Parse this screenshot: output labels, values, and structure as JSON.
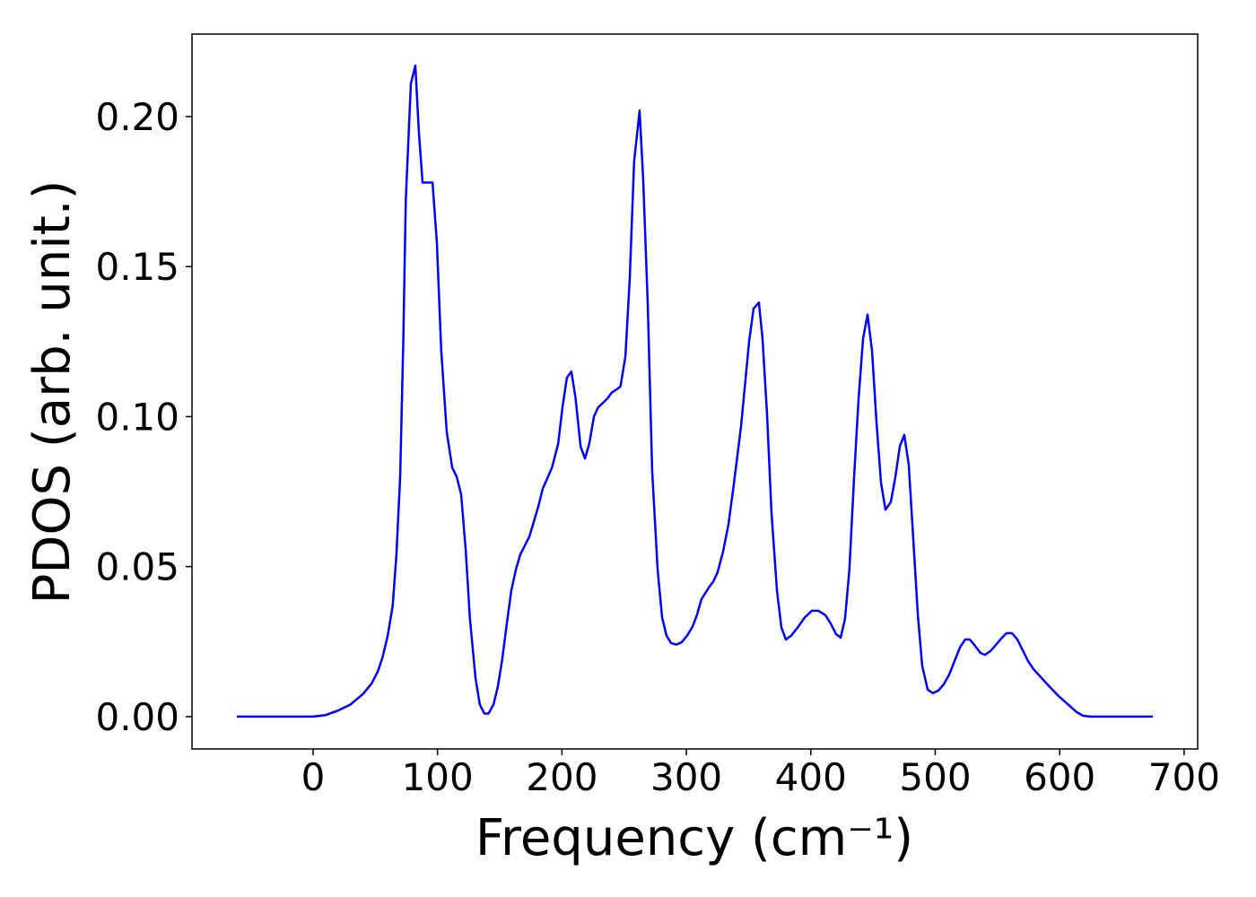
{
  "chart_data": {
    "type": "line",
    "xlabel": "Frequency (cm⁻¹)",
    "ylabel": "PDOS (arb. unit.)",
    "xlim": [
      -97.3,
      710.9
    ],
    "ylim": [
      -0.0108,
      0.2275
    ],
    "xticks": [
      0,
      100,
      200,
      300,
      400,
      500,
      600,
      700
    ],
    "yticks": [
      {
        "value": 0,
        "label": "0.00"
      },
      {
        "value": 0.05,
        "label": "0.05"
      },
      {
        "value": 0.1,
        "label": "0.10"
      },
      {
        "value": 0.15,
        "label": "0.15"
      },
      {
        "value": 0.2,
        "label": "0.20"
      }
    ],
    "grid": false,
    "series": [
      {
        "color": "#0000ff",
        "x": [
          -61.3,
          0,
          10,
          20,
          30,
          40,
          47,
          52,
          56,
          60,
          64,
          67,
          70,
          72.5,
          74.5,
          78.6,
          82.2,
          85,
          88,
          92,
          96,
          99.5,
          103,
          107.4,
          111.8,
          115.4,
          119,
          122.6,
          126,
          130.5,
          134,
          137.7,
          141,
          145,
          148.5,
          152,
          155.7,
          159.3,
          163,
          166.5,
          173.8,
          181,
          184.6,
          192,
          197,
          200.4,
          204,
          207.6,
          211,
          215,
          218.5,
          222,
          225.7,
          229,
          236.5,
          240,
          243.7,
          247,
          251,
          254.5,
          258,
          262.4,
          265.3,
          269,
          272.5,
          276.9,
          280.5,
          284,
          287.7,
          292,
          296.3,
          300.6,
          305,
          308.6,
          312,
          318,
          321.6,
          325,
          329.5,
          333.8,
          338,
          344,
          350.4,
          354,
          358.3,
          361.2,
          364.8,
          368.4,
          372.8,
          376.4,
          380,
          384.3,
          390,
          395,
          400.9,
          406,
          411.7,
          416,
          420.3,
          424,
          427.5,
          431,
          434.8,
          438.4,
          442,
          445.6,
          449.2,
          452.8,
          456.4,
          460,
          464.3,
          468,
          471.5,
          475.1,
          478.7,
          482.3,
          486,
          489.5,
          493.9,
          498.2,
          502.5,
          506.9,
          511.2,
          515.5,
          519.8,
          524,
          527.8,
          532,
          536.4,
          540,
          544.3,
          548.7,
          553,
          557.3,
          561.7,
          566,
          570.3,
          574.6,
          579,
          584.7,
          592,
          599,
          606.3,
          613.6,
          618.6,
          624.4,
          674.8
        ],
        "values": [
          0,
          0,
          0.0005,
          0.002,
          0.004,
          0.0075,
          0.011,
          0.015,
          0.02,
          0.027,
          0.037,
          0.054,
          0.08,
          0.125,
          0.172,
          0.211,
          0.217,
          0.195,
          0.178,
          0.178,
          0.178,
          0.158,
          0.122,
          0.095,
          0.083,
          0.08,
          0.074,
          0.056,
          0.033,
          0.013,
          0.004,
          0.001,
          0.001,
          0.004,
          0.01,
          0.019,
          0.031,
          0.042,
          0.049,
          0.054,
          0.06,
          0.07,
          0.076,
          0.083,
          0.091,
          0.103,
          0.113,
          0.115,
          0.106,
          0.09,
          0.086,
          0.091,
          0.1,
          0.103,
          0.106,
          0.108,
          0.109,
          0.11,
          0.12,
          0.146,
          0.185,
          0.202,
          0.179,
          0.137,
          0.082,
          0.049,
          0.033,
          0.027,
          0.0245,
          0.024,
          0.0248,
          0.027,
          0.03,
          0.034,
          0.039,
          0.043,
          0.045,
          0.048,
          0.055,
          0.064,
          0.077,
          0.097,
          0.125,
          0.136,
          0.138,
          0.126,
          0.101,
          0.068,
          0.042,
          0.0296,
          0.0257,
          0.027,
          0.03,
          0.033,
          0.0353,
          0.0353,
          0.0338,
          0.031,
          0.0275,
          0.0263,
          0.0326,
          0.049,
          0.08,
          0.106,
          0.126,
          0.134,
          0.122,
          0.098,
          0.078,
          0.069,
          0.0715,
          0.08,
          0.09,
          0.0939,
          0.084,
          0.0595,
          0.034,
          0.017,
          0.009,
          0.0078,
          0.0087,
          0.0108,
          0.014,
          0.0185,
          0.023,
          0.0257,
          0.0257,
          0.0236,
          0.0212,
          0.0206,
          0.0218,
          0.0239,
          0.026,
          0.0278,
          0.0278,
          0.0257,
          0.0221,
          0.0185,
          0.0158,
          0.0132,
          0.0099,
          0.0069,
          0.0042,
          0.0015,
          0.0003,
          0,
          0
        ]
      }
    ]
  }
}
